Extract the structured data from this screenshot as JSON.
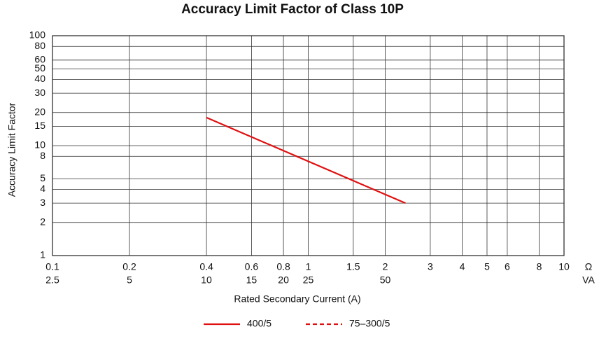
{
  "chart_data": {
    "type": "line",
    "title": "Accuracy Limit Factor of Class 10P",
    "x_label": "Rated Secondary Current (A)",
    "y_label": "Accuracy Limit Factor",
    "x_unit": "Ω",
    "x2_unit": "VA",
    "x_scale": "log",
    "y_scale": "log",
    "grid": true,
    "xlim": [
      0.1,
      10
    ],
    "xticks": [
      0.1,
      0.2,
      0.4,
      0.6,
      0.8,
      1,
      1.5,
      2,
      3,
      4,
      5,
      6,
      8,
      10
    ],
    "x2lim": [
      2.5,
      250
    ],
    "x2ticks": [
      2.5,
      5,
      10,
      15,
      20,
      25,
      50
    ],
    "ylim": [
      1,
      100
    ],
    "yticks": [
      1,
      2,
      3,
      4,
      5,
      8,
      10,
      15,
      20,
      30,
      40,
      50,
      60,
      80,
      100
    ],
    "legend": "bottom",
    "series": [
      {
        "name": "400/5",
        "color": "#e01010",
        "dash": "solid",
        "x": [
          0.4,
          2.4
        ],
        "values": [
          18,
          3
        ]
      },
      {
        "name": "75–300/5",
        "color": "#e01010",
        "dash": "dashed",
        "x": [],
        "values": []
      }
    ]
  }
}
